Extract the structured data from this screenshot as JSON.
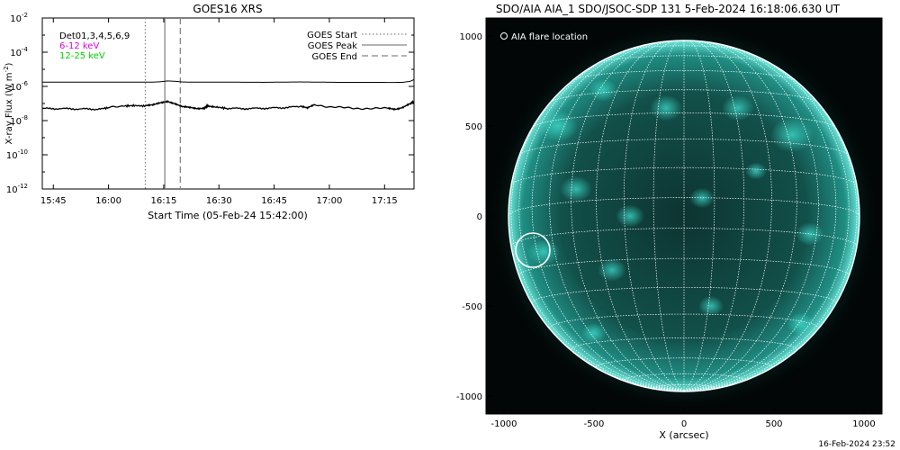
{
  "chart_data": [
    {
      "type": "line",
      "title": "GOES16 XRS",
      "xlabel": "Start Time (05-Feb-24 15:42:00)",
      "ylabel_main": "X-ray Flux (W m",
      "ylabel_sup": "-2",
      "ylabel_close": ")",
      "xlim": [
        0,
        101
      ],
      "x_ticks": [
        3,
        18,
        33,
        48,
        63,
        78,
        93
      ],
      "x_tick_labels": [
        "15:45",
        "16:00",
        "16:15",
        "16:30",
        "16:45",
        "17:00",
        "17:15"
      ],
      "ylim_log10": [
        -12,
        -2
      ],
      "y_ticks_log10": [
        -12,
        -10,
        -8,
        -6,
        -4,
        -2
      ],
      "y_tick_labels": [
        {
          "base": "10",
          "exp": "-12"
        },
        {
          "base": "10",
          "exp": "-10"
        },
        {
          "base": "10",
          "exp": "-8"
        },
        {
          "base": "10",
          "exp": "-6"
        },
        {
          "base": "10",
          "exp": "-4"
        },
        {
          "base": "10",
          "exp": "-2"
        }
      ],
      "detectors_label": "Det01,3,4,5,6,9",
      "channels": [
        {
          "label": "6-12 keV",
          "color": "#e000e0"
        },
        {
          "label": "12-25 keV",
          "color": "#00d000"
        }
      ],
      "series": [
        {
          "name": "",
          "color": "#000000",
          "x": [
            0,
            10,
            20,
            30,
            32,
            34,
            36,
            38,
            40,
            50,
            60,
            70,
            80,
            90,
            95,
            98,
            100,
            101
          ],
          "y_log10": [
            -5.75,
            -5.75,
            -5.75,
            -5.75,
            -5.73,
            -5.68,
            -5.7,
            -5.74,
            -5.75,
            -5.75,
            -5.76,
            -5.74,
            -5.76,
            -5.76,
            -5.77,
            -5.76,
            -5.7,
            -5.6
          ]
        },
        {
          "name": "",
          "color": "#000000",
          "x": [
            0,
            5,
            10,
            15,
            18,
            22,
            25,
            28,
            30,
            32,
            34,
            36,
            38,
            40,
            42,
            44,
            45,
            47,
            50,
            55,
            60,
            65,
            70,
            72,
            74,
            78,
            82,
            86,
            90,
            94,
            96,
            98,
            100,
            101
          ],
          "y_log10": [
            -7.3,
            -7.3,
            -7.32,
            -7.33,
            -7.25,
            -7.15,
            -7.12,
            -7.15,
            -7.1,
            -6.95,
            -6.85,
            -7.0,
            -7.2,
            -7.25,
            -7.3,
            -7.25,
            -7.12,
            -7.2,
            -7.28,
            -7.3,
            -7.28,
            -7.25,
            -7.18,
            -7.28,
            -7.05,
            -7.2,
            -7.25,
            -7.28,
            -7.3,
            -7.28,
            -7.32,
            -7.2,
            -7.0,
            -6.9
          ]
        }
      ],
      "events": [
        {
          "name": "GOES Start",
          "x": 28,
          "style": "dotted",
          "color": "#888888"
        },
        {
          "name": "GOES Peak",
          "x": 33.3,
          "style": "solid",
          "color": "#888888"
        },
        {
          "name": "GOES End",
          "x": 37.5,
          "style": "dashed",
          "color": "#888888"
        }
      ],
      "legend_placement": "top-right"
    },
    {
      "type": "image",
      "title": "SDO/AIA AIA_1 SDO/JSOC-SDP 131  5-Feb-2024 16:18:06.630 UT",
      "xlabel": "X (arcsec)",
      "xlim": [
        -1100,
        1100
      ],
      "ylim": [
        -1100,
        1100
      ],
      "x_ticks": [
        -1000,
        -500,
        0,
        500,
        1000
      ],
      "x_tick_labels": [
        "-1000",
        "-500",
        "0",
        "500",
        "1000"
      ],
      "y_ticks": [
        -1000,
        -500,
        0,
        500,
        1000
      ],
      "y_tick_labels": [
        "-1000",
        "-500",
        "0",
        "500",
        "1000"
      ],
      "solar_radius_arcsec": 975,
      "grid": true,
      "legend_label": "AIA flare location",
      "flare_location": {
        "x": -840,
        "y": -190,
        "radius": 95
      },
      "colors": {
        "disk": "#0e3a36",
        "bright": "#2dd4c4",
        "grid": "#ffffff"
      }
    }
  ],
  "footer_date": "16-Feb-2024 23:52"
}
